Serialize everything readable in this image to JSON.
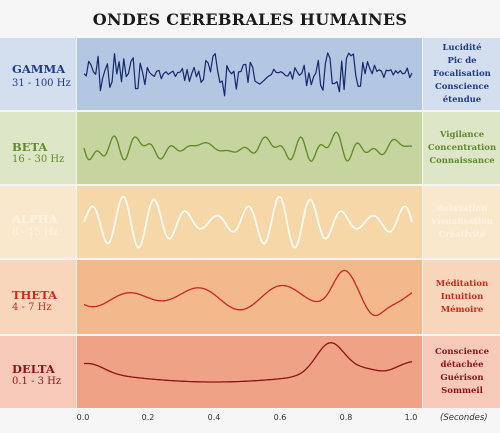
{
  "title": "ONDES CEREBRALES HUMAINES",
  "colors": {
    "gamma_bg": "#b3c6e2",
    "gamma_line": "#14286e",
    "gamma_text": "#1e3a8c",
    "beta_bg": "#c6d4a0",
    "beta_line": "#5e8a1e",
    "beta_text": "#5e8c2a",
    "alpha_bg": "#f6d7a8",
    "alpha_line": "#ffffff",
    "alpha_text": "#fdf3e4",
    "theta_bg": "#f3b98c",
    "theta_line": "#c62a14",
    "theta_text": "#d0281a",
    "delta_bg": "#efa286",
    "delta_line": "#8c1414",
    "delta_text": "#8c1414"
  },
  "bands": [
    {
      "id": "gamma",
      "name": "GAMMA",
      "freq": "31 - 100 Hz",
      "descriptions": [
        "Lucidité",
        "Pic de",
        "Focalisation",
        "Conscience",
        "étendue"
      ]
    },
    {
      "id": "beta",
      "name": "BETA",
      "freq": "16 - 30 Hz",
      "descriptions": [
        "Vigilance",
        "Concentration",
        "Connaissance"
      ]
    },
    {
      "id": "alpha",
      "name": "ALPHA",
      "freq": "8 - 15 Hz",
      "descriptions": [
        "Relaxation",
        "Visualisation",
        "Créativité"
      ]
    },
    {
      "id": "theta",
      "name": "THETA",
      "freq": "4 - 7 Hz",
      "descriptions": [
        "Méditation",
        "Intuition",
        "Mémoire"
      ]
    },
    {
      "id": "delta",
      "name": "DELTA",
      "freq": "0.1 - 3 Hz",
      "descriptions": [
        "Conscience",
        "détachée",
        "Guérison",
        "Sommeil"
      ]
    }
  ],
  "x_axis": {
    "ticks": [
      "0.0",
      "0.2",
      "0.4",
      "0.6",
      "0.8",
      "1.0"
    ],
    "unit": "(Secondes)"
  }
}
